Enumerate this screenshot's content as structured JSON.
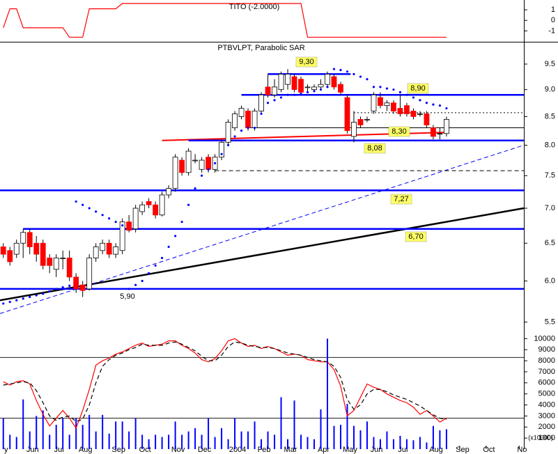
{
  "chart_data": [
    {
      "type": "line",
      "title": "TITO (-2.0000)",
      "x": [
        0,
        1,
        2,
        3,
        4,
        5,
        6,
        7,
        8,
        9,
        10,
        11,
        12,
        13,
        14,
        15,
        16,
        17,
        18,
        19,
        20,
        21,
        22,
        23,
        24,
        25,
        26,
        27,
        28,
        29,
        30,
        31,
        32,
        33,
        34,
        35,
        36,
        37,
        38,
        39,
        40,
        41,
        42,
        43,
        44,
        45,
        46,
        47,
        48,
        49,
        50,
        51,
        52,
        53,
        54,
        55,
        56,
        57,
        58,
        59,
        60,
        61,
        62,
        63,
        64,
        65,
        66,
        67
      ],
      "series": [
        {
          "color": "#ff0000",
          "values": [
            -0.7,
            1.1,
            1.1,
            -0.7,
            -0.7,
            -0.7,
            -0.7,
            -0.7,
            -0.7,
            -0.7,
            -1.6,
            -1.6,
            -1.6,
            1.1,
            1.1,
            1.1,
            1.1,
            1.1,
            1.6,
            1.6,
            1.6,
            1.6,
            1.6,
            1.6,
            1.6,
            1.6,
            1.6,
            1.6,
            1.6,
            1.6,
            1.6,
            1.6,
            1.6,
            1.6,
            1.6,
            1.6,
            1.6,
            1.6,
            1.6,
            1.6,
            1.6,
            1.6,
            1.6,
            1.6,
            1.6,
            1.6,
            -1.6,
            -1.6,
            -1.6,
            -1.6,
            -1.6,
            -1.6,
            -1.6,
            -1.6,
            -1.6,
            -1.6,
            -1.6,
            -1.6,
            -1.6,
            -1.6,
            -1.6,
            -1.6,
            -1.6,
            -1.6,
            -1.6,
            -1.6,
            -1.6,
            -1.6
          ]
        }
      ],
      "xlim": [
        -0.5,
        78.7
      ],
      "ylim": [
        -1.9,
        1.8
      ],
      "yticks": [
        1,
        0,
        -1
      ]
    },
    {
      "type": "candlestick",
      "title": "PTBVLPT, Parabolic SAR",
      "log": true,
      "x": [
        0,
        1,
        2,
        3,
        4,
        5,
        6,
        7,
        8,
        9,
        10,
        11,
        12,
        13,
        14,
        15,
        16,
        17,
        18,
        19,
        20,
        21,
        22,
        23,
        24,
        25,
        26,
        27,
        28,
        29,
        30,
        31,
        32,
        33,
        34,
        35,
        36,
        37,
        38,
        39,
        40,
        41,
        42,
        43,
        44,
        45,
        46,
        47,
        48,
        49,
        50,
        51,
        52,
        53,
        54,
        55,
        56,
        57,
        58,
        59,
        60,
        61,
        62,
        63,
        64,
        65,
        66,
        67
      ],
      "open": [
        6.45,
        6.4,
        6.35,
        6.5,
        6.65,
        6.5,
        6.5,
        6.3,
        6.15,
        6.3,
        6.3,
        6.05,
        5.95,
        5.9,
        6.3,
        6.4,
        6.5,
        6.35,
        6.4,
        6.8,
        6.7,
        6.95,
        7.1,
        7.05,
        6.9,
        7.2,
        7.3,
        7.75,
        7.55,
        7.75,
        7.6,
        7.8,
        7.6,
        7.8,
        8.05,
        8.3,
        8.5,
        8.6,
        8.3,
        8.6,
        9.05,
        8.9,
        9.0,
        9.1,
        9.25,
        9.2,
        9.05,
        9.0,
        9.05,
        9.1,
        9.25,
        9.1,
        8.85,
        8.15,
        8.45,
        8.45,
        8.6,
        8.85,
        8.7,
        8.75,
        8.65,
        8.7,
        8.6,
        8.55,
        8.55,
        8.3,
        8.2,
        8.2
      ],
      "high": [
        6.5,
        6.45,
        6.55,
        6.7,
        6.7,
        6.6,
        6.55,
        6.35,
        6.35,
        6.4,
        6.4,
        6.1,
        6.0,
        6.35,
        6.5,
        6.55,
        6.55,
        6.5,
        6.85,
        6.9,
        7.05,
        7.1,
        7.15,
        7.1,
        7.25,
        7.35,
        7.85,
        7.8,
        7.95,
        7.85,
        7.8,
        7.85,
        7.85,
        8.1,
        8.45,
        8.6,
        8.7,
        8.65,
        8.65,
        8.95,
        9.3,
        9.2,
        9.35,
        9.4,
        9.3,
        9.25,
        9.1,
        9.1,
        9.2,
        9.35,
        9.3,
        9.15,
        8.9,
        8.6,
        8.5,
        8.5,
        8.95,
        8.95,
        8.8,
        8.8,
        8.9,
        8.75,
        8.65,
        8.6,
        8.6,
        8.35,
        8.3,
        8.5
      ],
      "low": [
        6.3,
        6.2,
        6.3,
        6.3,
        6.35,
        6.25,
        6.15,
        6.1,
        6.05,
        6.15,
        6.0,
        5.85,
        5.8,
        5.88,
        6.25,
        6.35,
        6.3,
        6.3,
        6.35,
        6.65,
        6.65,
        6.9,
        7.0,
        6.85,
        6.88,
        7.15,
        7.25,
        7.5,
        7.5,
        7.7,
        7.55,
        7.55,
        7.55,
        7.75,
        8.0,
        8.25,
        8.45,
        8.25,
        8.25,
        8.55,
        8.85,
        8.85,
        8.95,
        9.0,
        8.95,
        8.9,
        8.95,
        8.95,
        9.0,
        9.05,
        9.0,
        8.9,
        8.2,
        8.05,
        8.3,
        8.4,
        8.55,
        8.65,
        8.6,
        8.55,
        8.5,
        8.5,
        8.45,
        8.5,
        8.3,
        8.1,
        8.1,
        8.15
      ],
      "close": [
        6.35,
        6.25,
        6.5,
        6.65,
        6.45,
        6.35,
        6.2,
        6.2,
        6.3,
        6.3,
        6.05,
        5.9,
        5.88,
        6.3,
        6.45,
        6.5,
        6.35,
        6.45,
        6.8,
        6.68,
        7.0,
        7.05,
        7.05,
        6.9,
        7.2,
        7.3,
        7.8,
        7.55,
        7.9,
        7.75,
        7.75,
        7.6,
        7.8,
        8.05,
        8.4,
        8.55,
        8.65,
        8.3,
        8.6,
        8.9,
        8.9,
        9.05,
        9.3,
        9.3,
        9.0,
        8.95,
        9.05,
        9.05,
        9.1,
        9.3,
        9.05,
        8.95,
        8.25,
        8.4,
        8.35,
        8.45,
        8.9,
        8.7,
        8.75,
        8.6,
        8.55,
        8.55,
        8.5,
        8.55,
        8.35,
        8.15,
        8.2,
        8.45
      ],
      "up_color": "#ffffff",
      "down_color": "#ff0000",
      "sar": {
        "color": "#0000ff",
        "values": [
          5.72,
          5.74,
          5.76,
          5.78,
          5.8,
          5.82,
          5.84,
          5.87,
          5.9,
          5.92,
          5.94,
          7.1,
          7.05,
          7.0,
          6.95,
          6.9,
          6.85,
          6.8,
          6.75,
          5.9,
          5.95,
          6.0,
          6.1,
          6.2,
          6.3,
          6.45,
          6.6,
          6.8,
          7.05,
          7.3,
          7.5,
          7.6,
          7.7,
          7.85,
          8.0,
          8.15,
          8.25,
          8.3,
          8.3,
          8.55,
          8.75,
          8.8,
          8.85,
          8.9,
          8.9,
          8.92,
          8.95,
          8.97,
          9.0,
          9.05,
          9.4,
          9.38,
          9.35,
          9.3,
          9.25,
          9.2,
          9.05,
          9.05,
          9.02,
          9.0,
          8.95,
          8.9,
          8.85,
          8.8,
          8.75,
          8.72,
          8.7,
          8.65
        ]
      },
      "levels": [
        {
          "value": 9.3,
          "label": "9,30",
          "x_start": 40,
          "x_end": 52.5,
          "color": "#0000ff",
          "style": "thick",
          "boxed": true
        },
        {
          "value": 8.9,
          "label": "8,90",
          "x_start": 36,
          "color": "#0000ff",
          "style": "thick",
          "boxed": true
        },
        {
          "value": 8.3,
          "label": "8,30",
          "x_start": 37,
          "color": "#000000",
          "style": "thin",
          "boxed": true
        },
        {
          "value": 8.08,
          "label": "8,08",
          "x_start": 28,
          "color": "#0000ff",
          "style": "thick",
          "boxed": true
        },
        {
          "value": 7.27,
          "label": "7,27",
          "color": "#0000ff",
          "style": "thick",
          "boxed": true
        },
        {
          "value": 6.7,
          "label": "6,70",
          "x_start": 3,
          "color": "#0000ff",
          "style": "thick",
          "boxed": true
        },
        {
          "value": 5.9,
          "label": "5,90",
          "color": "#0000ff",
          "style": "thick",
          "boxed": false
        },
        {
          "value": 8.57,
          "x_start": 53,
          "color": "#000000",
          "style": "dotted"
        },
        {
          "value": 7.58,
          "x_start": 32,
          "color": "#000000",
          "style": "dashed"
        }
      ],
      "trendlines": [
        {
          "x": [
            -0.5,
            78.7
          ],
          "values": [
            5.76,
            7.0
          ],
          "color": "#000000",
          "style": "thick"
        },
        {
          "x": [
            -0.5,
            78.7
          ],
          "values": [
            5.6,
            8.0
          ],
          "color": "#0000ff",
          "style": "dashed"
        },
        {
          "x": [
            24,
            67
          ],
          "values": [
            8.08,
            8.22
          ],
          "color": "#ff0000",
          "style": "medium"
        }
      ],
      "xlim": [
        -0.5,
        78.7
      ],
      "ylim": [
        5.36,
        9.93
      ],
      "yticks": [
        9.5,
        {
          "value": 9,
          "label": "9.0"
        },
        8.5,
        {
          "value": 8,
          "label": "8.0"
        },
        7.5,
        {
          "value": 7,
          "label": "7.0"
        },
        6.5,
        {
          "value": 6,
          "label": "6.0"
        },
        5.5
      ]
    },
    {
      "type": "bar",
      "ylabel": "(x10000)",
      "x": [
        0,
        1,
        2,
        3,
        4,
        5,
        6,
        7,
        8,
        9,
        10,
        11,
        12,
        13,
        14,
        15,
        16,
        17,
        18,
        19,
        20,
        21,
        22,
        23,
        24,
        25,
        26,
        27,
        28,
        29,
        30,
        31,
        32,
        33,
        34,
        35,
        36,
        37,
        38,
        39,
        40,
        41,
        42,
        43,
        44,
        45,
        46,
        47,
        48,
        49,
        50,
        51,
        52,
        53,
        54,
        55,
        56,
        57,
        58,
        59,
        60,
        61,
        62,
        63,
        64,
        65,
        66,
        67
      ],
      "color": "#0000ff",
      "values": [
        2800,
        1300,
        1100,
        4500,
        1600,
        3000,
        3500,
        1300,
        2200,
        2800,
        1300,
        2800,
        2200,
        3100,
        1600,
        3100,
        1400,
        2500,
        2500,
        1600,
        2800,
        1300,
        900,
        1300,
        1100,
        1300,
        2500,
        1300,
        1600,
        1900,
        1300,
        2800,
        1100,
        1900,
        900,
        2800,
        1600,
        1600,
        2500,
        900,
        1600,
        1300,
        4700,
        900,
        4400,
        1300,
        1100,
        900,
        3600,
        10000,
        2100,
        2200,
        4100,
        2100,
        1700,
        2500,
        1100,
        900,
        1600,
        900,
        1200,
        900,
        800,
        1100,
        600,
        2100,
        1700,
        1800
      ],
      "lines": [
        {
          "color": "#ff0000",
          "style": "solid",
          "values": [
            6100,
            5800,
            6100,
            6200,
            5900,
            4400,
            3150,
            2100,
            2800,
            3500,
            2800,
            1900,
            3500,
            5400,
            7600,
            8000,
            8250,
            8600,
            8800,
            9100,
            9400,
            9600,
            9300,
            9400,
            9500,
            9800,
            9800,
            9400,
            9100,
            8700,
            8100,
            7900,
            8200,
            8900,
            9800,
            10000,
            9600,
            9300,
            9400,
            9100,
            9300,
            9100,
            8800,
            8500,
            8600,
            8500,
            8100,
            8000,
            7900,
            7900,
            7200,
            5700,
            3000,
            3500,
            4700,
            5900,
            5600,
            5400,
            5000,
            4700,
            4400,
            4200,
            3800,
            3150,
            3500,
            3000,
            2450,
            2800
          ]
        },
        {
          "color": "#000000",
          "style": "dashed",
          "values": [
            5800,
            5900,
            6000,
            6100,
            6000,
            5300,
            4200,
            3000,
            2600,
            2900,
            3000,
            2500,
            2700,
            4000,
            6000,
            7500,
            8100,
            8500,
            8700,
            9000,
            9200,
            9500,
            9400,
            9400,
            9400,
            9600,
            9700,
            9500,
            9200,
            8900,
            8400,
            8000,
            8000,
            8500,
            9300,
            9700,
            9600,
            9400,
            9300,
            9200,
            9200,
            9100,
            8900,
            8700,
            8600,
            8500,
            8300,
            8100,
            8000,
            7900,
            7500,
            6500,
            4500,
            3600,
            4000,
            5000,
            5400,
            5400,
            5200,
            4900,
            4700,
            4500,
            4200,
            3900,
            3500,
            3100,
            2800,
            2700
          ]
        }
      ],
      "levels": [
        8300,
        2800
      ],
      "xlim": [
        -0.5,
        78.7
      ],
      "ylim": [
        0,
        10400
      ],
      "yticks": [
        10000,
        9000,
        8000,
        7000,
        6000,
        5000,
        4000,
        3000,
        2000,
        1000
      ],
      "xticks": [
        {
          "value": 0,
          "label": "y"
        },
        {
          "value": 4,
          "label": "Jun"
        },
        {
          "value": 8,
          "label": "Jul"
        },
        {
          "value": 12,
          "label": "Aug"
        },
        {
          "value": 17,
          "label": "Sep"
        },
        {
          "value": 21,
          "label": "Oct"
        },
        {
          "value": 26,
          "label": "Nov"
        },
        {
          "value": 30,
          "label": "Dec"
        },
        {
          "value": 35,
          "label": "2004"
        },
        {
          "value": 39,
          "label": "Feb"
        },
        {
          "value": 43,
          "label": "Mar"
        },
        {
          "value": 48,
          "label": "Apr"
        },
        {
          "value": 52,
          "label": "May"
        },
        {
          "value": 56,
          "label": "Jun"
        },
        {
          "value": 60,
          "label": "Jul"
        },
        {
          "value": 65,
          "label": "Aug"
        },
        {
          "value": 69,
          "label": "Sep"
        },
        {
          "value": 73,
          "label": "Oct"
        },
        {
          "value": 78,
          "label": "No"
        }
      ]
    }
  ]
}
